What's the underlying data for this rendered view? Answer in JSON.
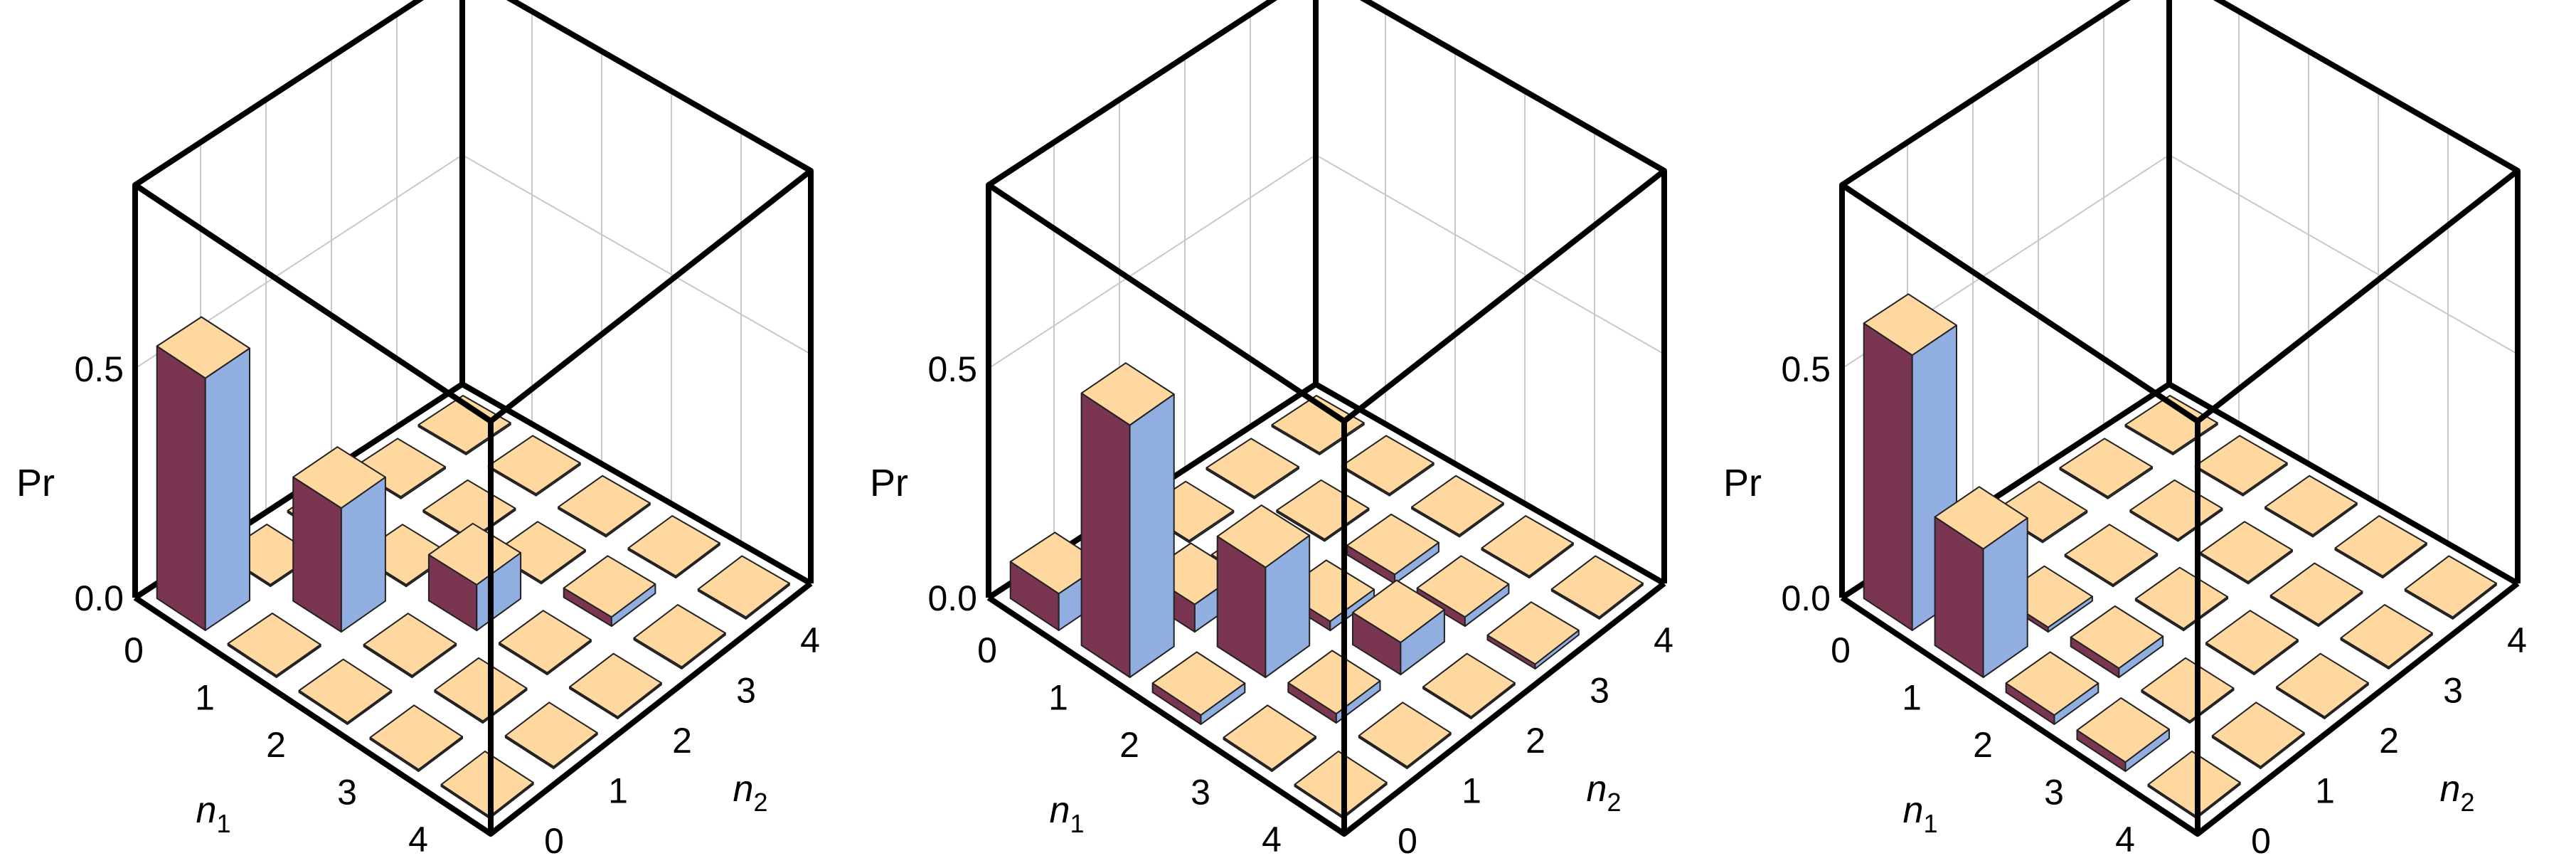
{
  "chart_data": [
    {
      "type": "bar3d",
      "x_label": "n",
      "x_label_sub": "1",
      "y_label": "n",
      "y_label_sub": "2",
      "z_label": "Pr",
      "x_ticks": [
        "0",
        "1",
        "2",
        "3",
        "4"
      ],
      "y_ticks": [
        "0",
        "1",
        "2",
        "3",
        "4"
      ],
      "z_ticks": [
        "0.0",
        "0.5"
      ],
      "zlim": [
        0,
        0.9
      ],
      "grid": true,
      "box": true,
      "colors": {
        "top": "#ffd8a0",
        "left_face": "#7a3650",
        "right_face": "#90afe0"
      },
      "bars": [
        {
          "n1": 0,
          "n2": 0,
          "value": 0.55
        },
        {
          "n1": 0,
          "n2": 1,
          "value": 0.0
        },
        {
          "n1": 0,
          "n2": 2,
          "value": 0.0
        },
        {
          "n1": 0,
          "n2": 3,
          "value": 0.0
        },
        {
          "n1": 0,
          "n2": 4,
          "value": 0.0
        },
        {
          "n1": 1,
          "n2": 0,
          "value": 0.0
        },
        {
          "n1": 1,
          "n2": 1,
          "value": 0.27
        },
        {
          "n1": 1,
          "n2": 2,
          "value": 0.0
        },
        {
          "n1": 1,
          "n2": 3,
          "value": 0.0
        },
        {
          "n1": 1,
          "n2": 4,
          "value": 0.0
        },
        {
          "n1": 2,
          "n2": 0,
          "value": 0.0
        },
        {
          "n1": 2,
          "n2": 1,
          "value": 0.0
        },
        {
          "n1": 2,
          "n2": 2,
          "value": 0.1
        },
        {
          "n1": 2,
          "n2": 3,
          "value": 0.0
        },
        {
          "n1": 2,
          "n2": 4,
          "value": 0.0
        },
        {
          "n1": 3,
          "n2": 0,
          "value": 0.0
        },
        {
          "n1": 3,
          "n2": 1,
          "value": 0.0
        },
        {
          "n1": 3,
          "n2": 2,
          "value": 0.0
        },
        {
          "n1": 3,
          "n2": 3,
          "value": 0.02
        },
        {
          "n1": 3,
          "n2": 4,
          "value": 0.0
        },
        {
          "n1": 4,
          "n2": 0,
          "value": 0.0
        },
        {
          "n1": 4,
          "n2": 1,
          "value": 0.0
        },
        {
          "n1": 4,
          "n2": 2,
          "value": 0.0
        },
        {
          "n1": 4,
          "n2": 3,
          "value": 0.0
        },
        {
          "n1": 4,
          "n2": 4,
          "value": 0.0
        }
      ]
    },
    {
      "type": "bar3d",
      "x_label": "n",
      "x_label_sub": "1",
      "y_label": "n",
      "y_label_sub": "2",
      "z_label": "Pr",
      "x_ticks": [
        "0",
        "1",
        "2",
        "3",
        "4"
      ],
      "y_ticks": [
        "0",
        "1",
        "2",
        "3",
        "4"
      ],
      "z_ticks": [
        "0.0",
        "0.5"
      ],
      "zlim": [
        0,
        0.9
      ],
      "grid": true,
      "box": true,
      "colors": {
        "top": "#ffd8a0",
        "left_face": "#7a3650",
        "right_face": "#90afe0"
      },
      "bars": [
        {
          "n1": 0,
          "n2": 0,
          "value": 0.08
        },
        {
          "n1": 0,
          "n2": 1,
          "value": 0.0
        },
        {
          "n1": 0,
          "n2": 2,
          "value": 0.0
        },
        {
          "n1": 0,
          "n2": 3,
          "value": 0.0
        },
        {
          "n1": 0,
          "n2": 4,
          "value": 0.0
        },
        {
          "n1": 1,
          "n2": 0,
          "value": 0.55
        },
        {
          "n1": 1,
          "n2": 1,
          "value": 0.06
        },
        {
          "n1": 1,
          "n2": 2,
          "value": 0.0
        },
        {
          "n1": 1,
          "n2": 3,
          "value": 0.0
        },
        {
          "n1": 1,
          "n2": 4,
          "value": 0.0
        },
        {
          "n1": 2,
          "n2": 0,
          "value": 0.02
        },
        {
          "n1": 2,
          "n2": 1,
          "value": 0.24
        },
        {
          "n1": 2,
          "n2": 2,
          "value": 0.02
        },
        {
          "n1": 2,
          "n2": 3,
          "value": 0.02
        },
        {
          "n1": 2,
          "n2": 4,
          "value": 0.0
        },
        {
          "n1": 3,
          "n2": 0,
          "value": 0.0
        },
        {
          "n1": 3,
          "n2": 1,
          "value": 0.02
        },
        {
          "n1": 3,
          "n2": 2,
          "value": 0.07
        },
        {
          "n1": 3,
          "n2": 3,
          "value": 0.02
        },
        {
          "n1": 3,
          "n2": 4,
          "value": 0.0
        },
        {
          "n1": 4,
          "n2": 0,
          "value": 0.0
        },
        {
          "n1": 4,
          "n2": 1,
          "value": 0.0
        },
        {
          "n1": 4,
          "n2": 2,
          "value": 0.0
        },
        {
          "n1": 4,
          "n2": 3,
          "value": 0.01
        },
        {
          "n1": 4,
          "n2": 4,
          "value": 0.0
        }
      ]
    },
    {
      "type": "bar3d",
      "x_label": "n",
      "x_label_sub": "1",
      "y_label": "n",
      "y_label_sub": "2",
      "z_label": "Pr",
      "x_ticks": [
        "0",
        "1",
        "2",
        "3",
        "4"
      ],
      "y_ticks": [
        "0",
        "1",
        "2",
        "3",
        "4"
      ],
      "z_ticks": [
        "0.0",
        "0.5"
      ],
      "zlim": [
        0,
        0.9
      ],
      "grid": true,
      "box": true,
      "colors": {
        "top": "#ffd8a0",
        "left_face": "#7a3650",
        "right_face": "#90afe0"
      },
      "bars": [
        {
          "n1": 0,
          "n2": 0,
          "value": 0.6
        },
        {
          "n1": 0,
          "n2": 1,
          "value": 0.0
        },
        {
          "n1": 0,
          "n2": 2,
          "value": 0.0
        },
        {
          "n1": 0,
          "n2": 3,
          "value": 0.0
        },
        {
          "n1": 0,
          "n2": 4,
          "value": 0.0
        },
        {
          "n1": 1,
          "n2": 0,
          "value": 0.28
        },
        {
          "n1": 1,
          "n2": 1,
          "value": 0.01
        },
        {
          "n1": 1,
          "n2": 2,
          "value": 0.0
        },
        {
          "n1": 1,
          "n2": 3,
          "value": 0.0
        },
        {
          "n1": 1,
          "n2": 4,
          "value": 0.0
        },
        {
          "n1": 2,
          "n2": 0,
          "value": 0.02
        },
        {
          "n1": 2,
          "n2": 1,
          "value": 0.02
        },
        {
          "n1": 2,
          "n2": 2,
          "value": 0.0
        },
        {
          "n1": 2,
          "n2": 3,
          "value": 0.0
        },
        {
          "n1": 2,
          "n2": 4,
          "value": 0.0
        },
        {
          "n1": 3,
          "n2": 0,
          "value": 0.02
        },
        {
          "n1": 3,
          "n2": 1,
          "value": 0.0
        },
        {
          "n1": 3,
          "n2": 2,
          "value": 0.0
        },
        {
          "n1": 3,
          "n2": 3,
          "value": 0.0
        },
        {
          "n1": 3,
          "n2": 4,
          "value": 0.0
        },
        {
          "n1": 4,
          "n2": 0,
          "value": 0.0
        },
        {
          "n1": 4,
          "n2": 1,
          "value": 0.0
        },
        {
          "n1": 4,
          "n2": 2,
          "value": 0.0
        },
        {
          "n1": 4,
          "n2": 3,
          "value": 0.0
        },
        {
          "n1": 4,
          "n2": 4,
          "value": 0.0
        }
      ]
    }
  ]
}
